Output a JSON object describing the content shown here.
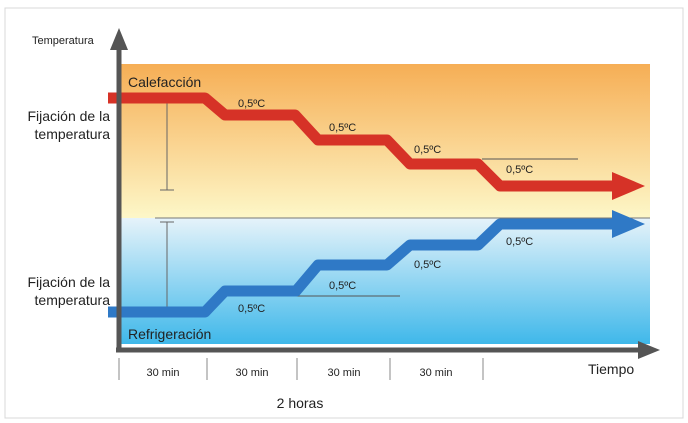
{
  "axes": {
    "y_label": "Temperatura",
    "x_label": "Tiempo"
  },
  "heating": {
    "label": "Calefacción",
    "setpoint_label_line1": "Fijación de la",
    "setpoint_label_line2": "temperatura",
    "step_labels": [
      "0,5ºC",
      "0,5ºC",
      "0,5ºC",
      "0,5ºC"
    ],
    "color": "#d63227"
  },
  "cooling": {
    "label": "Refrigeración",
    "setpoint_label_line1": "Fijación de la",
    "setpoint_label_line2": "temperatura",
    "step_labels": [
      "0,5ºC",
      "0,5ºC",
      "0,5ºC",
      "0,5ºC"
    ],
    "color": "#2f79c6"
  },
  "time_intervals": [
    "30 min",
    "30 min",
    "30 min",
    "30 min"
  ],
  "total_time": "2 horas",
  "colors": {
    "heating_zone_top": "#f6ae55",
    "heating_zone_bottom": "#fdf7c8",
    "cooling_zone_top": "#e6f3fa",
    "cooling_zone_bottom": "#3fb8ea",
    "axis": "#555555"
  }
}
